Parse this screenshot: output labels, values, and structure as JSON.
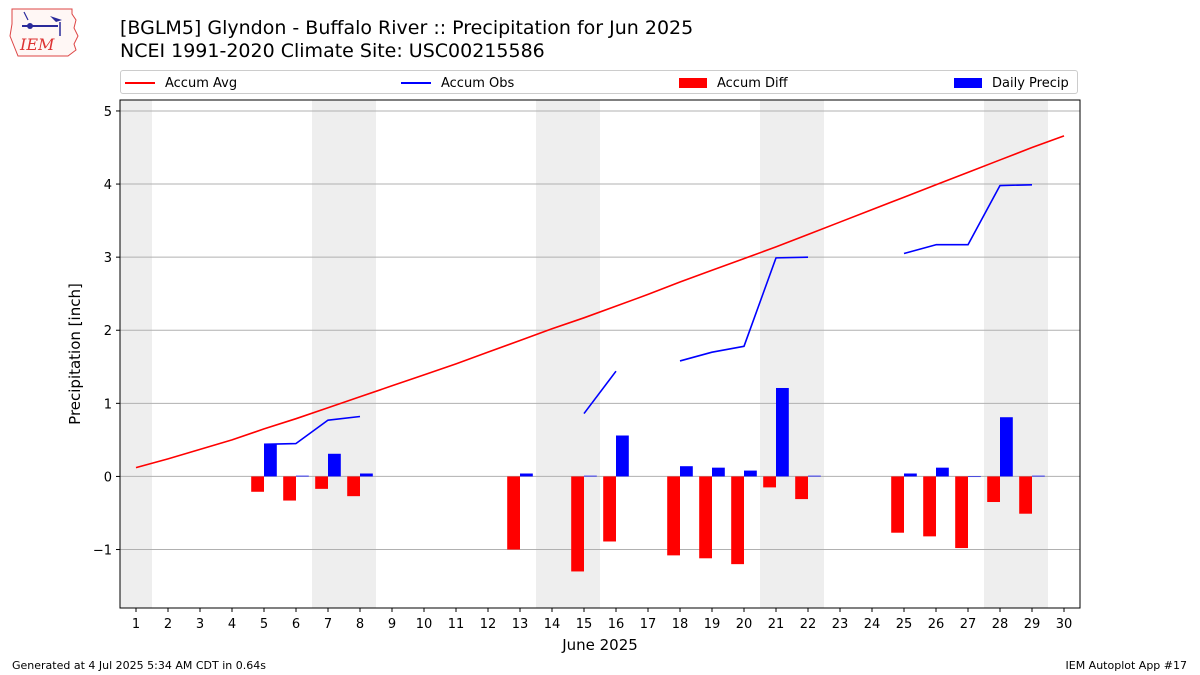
{
  "header": {
    "title": "[BGLM5] Glyndon - Buffalo River :: Precipitation for Jun 2025",
    "subtitle": "NCEI 1991-2020 Climate Site: USC00215586",
    "logo_text": "IEM"
  },
  "footer": {
    "generated": "Generated at 4 Jul 2025 5:34 AM CDT in 0.64s",
    "app": "IEM Autoplot App #17"
  },
  "chart_data": {
    "type": "bar",
    "title": "[BGLM5] Glyndon - Buffalo River :: Precipitation for Jun 2025",
    "subtitle": "NCEI 1991-2020 Climate Site: USC00215586",
    "xlabel": "June 2025",
    "ylabel": "Precipitation [inch]",
    "xlim": [
      0.5,
      30.5
    ],
    "ylim": [
      -1.8,
      5.15
    ],
    "yticks": [
      -1,
      0,
      1,
      2,
      3,
      4,
      5
    ],
    "ytick_labels": [
      "−1",
      "0",
      "1",
      "2",
      "3",
      "4",
      "5"
    ],
    "x": [
      1,
      2,
      3,
      4,
      5,
      6,
      7,
      8,
      9,
      10,
      11,
      12,
      13,
      14,
      15,
      16,
      17,
      18,
      19,
      20,
      21,
      22,
      23,
      24,
      25,
      26,
      27,
      28,
      29,
      30
    ],
    "grid": "horizontal",
    "legend_position": "top",
    "weekend_shading": [
      [
        0.5,
        1.5
      ],
      [
        6.5,
        8.5
      ],
      [
        13.5,
        15.5
      ],
      [
        20.5,
        22.5
      ],
      [
        27.5,
        29.5
      ]
    ],
    "legend": [
      {
        "label": "Accum Avg",
        "kind": "line",
        "color": "#ff0000"
      },
      {
        "label": "Accum Obs",
        "kind": "line",
        "color": "#0000ff"
      },
      {
        "label": "Accum Diff",
        "kind": "bar",
        "color": "#ff0000"
      },
      {
        "label": "Daily Precip",
        "kind": "bar",
        "color": "#0000ff"
      }
    ],
    "series": [
      {
        "name": "Accum Avg",
        "kind": "line",
        "color": "#ff0000",
        "values": [
          0.12,
          0.24,
          0.37,
          0.5,
          0.65,
          0.79,
          0.94,
          1.09,
          1.24,
          1.39,
          1.54,
          1.7,
          1.86,
          2.02,
          2.17,
          2.33,
          2.49,
          2.66,
          2.82,
          2.98,
          3.14,
          3.31,
          3.48,
          3.65,
          3.82,
          3.99,
          4.16,
          4.33,
          4.5,
          4.66
        ]
      },
      {
        "name": "Accum Obs",
        "kind": "line",
        "color": "#0000ff",
        "values": [
          null,
          null,
          null,
          null,
          0.44,
          0.45,
          0.77,
          0.82,
          null,
          null,
          null,
          null,
          null,
          null,
          0.86,
          1.44,
          null,
          1.58,
          1.7,
          1.78,
          2.99,
          3.0,
          null,
          null,
          3.05,
          3.17,
          3.17,
          3.98,
          3.99,
          null
        ]
      },
      {
        "name": "Accum Diff",
        "kind": "bar",
        "color": "#ff0000",
        "values": [
          null,
          null,
          null,
          null,
          -0.21,
          -0.33,
          -0.17,
          -0.27,
          null,
          null,
          null,
          null,
          -1.0,
          null,
          -1.3,
          -0.89,
          null,
          -1.08,
          -1.12,
          -1.2,
          -0.15,
          -0.31,
          null,
          null,
          -0.77,
          -0.82,
          -0.98,
          -0.35,
          -0.51,
          null
        ]
      },
      {
        "name": "Daily Precip",
        "kind": "bar",
        "color": "#0000ff",
        "values": [
          null,
          null,
          null,
          null,
          0.44,
          0.01,
          0.31,
          0.04,
          null,
          null,
          null,
          null,
          0.04,
          null,
          0.01,
          0.56,
          null,
          0.14,
          0.12,
          0.08,
          1.21,
          0.01,
          null,
          null,
          0.04,
          0.12,
          0.0,
          0.81,
          0.01,
          null
        ]
      }
    ]
  }
}
